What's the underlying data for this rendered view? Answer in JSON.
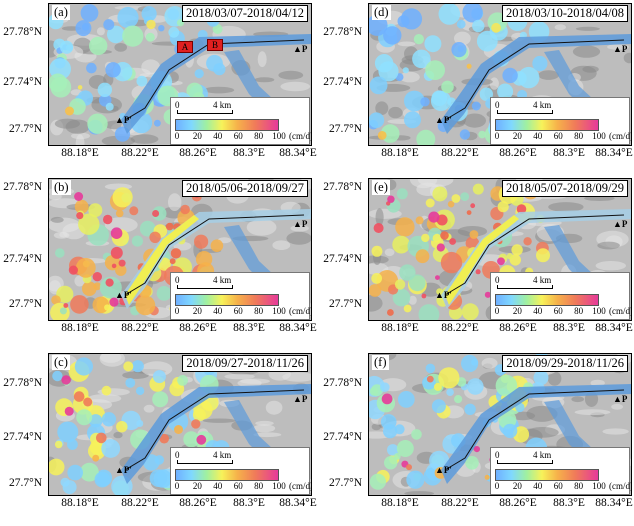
{
  "y_ticks": [
    "27.78°N",
    "27.74°N",
    "27.7°N"
  ],
  "x_ticks": [
    "88.18°E",
    "88.22°E",
    "88.26°E",
    "88.3°E",
    "88.34°E"
  ],
  "legend": {
    "scale_start": "0",
    "scale_end": "4 km",
    "colorbar_ticks": [
      "0",
      "20",
      "40",
      "60",
      "80",
      "100"
    ],
    "unit": "(cm/d)"
  },
  "points": {
    "p": "P",
    "p_prime": "P'"
  },
  "markers": {
    "a": "A",
    "b": "B"
  },
  "colors": {
    "glacier": "#5d9bdc",
    "low": "#6fb0ff",
    "mid": "#f7f25a",
    "high": "#e63a9a"
  },
  "panels": [
    {
      "label": "(a)",
      "date": "2018/03/07-2018/04/12",
      "speed": "low"
    },
    {
      "label": "(d)",
      "date": "2018/03/10-2018/04/08",
      "speed": "low"
    },
    {
      "label": "(b)",
      "date": "2018/05/06-2018/09/27",
      "speed": "high"
    },
    {
      "label": "(e)",
      "date": "2018/05/07-2018/09/29",
      "speed": "high"
    },
    {
      "label": "(c)",
      "date": "2018/09/27-2018/11/26",
      "speed": "mid"
    },
    {
      "label": "(f)",
      "date": "2018/09/29-2018/11/26",
      "speed": "mid"
    }
  ]
}
